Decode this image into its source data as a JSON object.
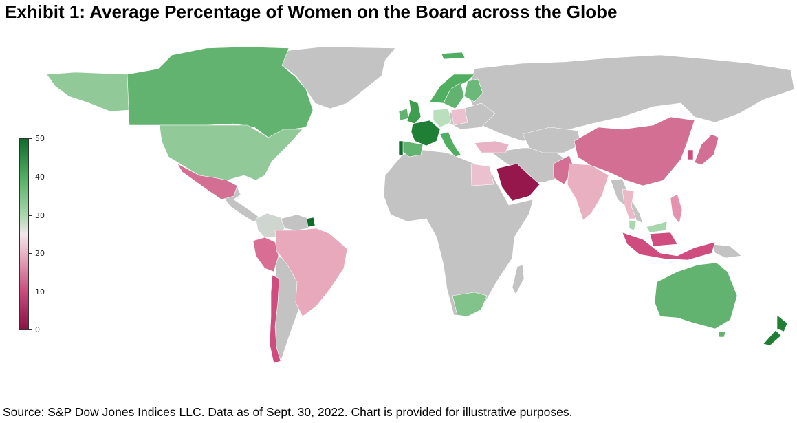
{
  "title": "Exhibit 1: Average Percentage of Women on the Board across the Globe",
  "source": "S&P Dow Jones Indices LLC. Data as of Sept. 30, 2022. Chart is provided for illustrative purposes.",
  "source_prefix": "Source:",
  "colors": {
    "no_data": "#c3c3c3",
    "scale_low": "#8e1045",
    "scale_mid": "#f3e6ea",
    "scale_high": "#0f6b2b"
  },
  "colorbar": {
    "min": 0,
    "max": 50,
    "ticks": [
      "50",
      "40",
      "30",
      "20",
      "10",
      "0"
    ]
  },
  "chart_data": {
    "type": "heatmap",
    "map_type": "choropleth",
    "value_unit": "percent",
    "range": [
      0,
      50
    ],
    "regions": [
      {
        "name": "Canada",
        "value": 39
      },
      {
        "name": "Alaska",
        "value": 33
      },
      {
        "name": "United States",
        "value": 32
      },
      {
        "name": "Mexico",
        "value": 14
      },
      {
        "name": "Colombia",
        "value": 28
      },
      {
        "name": "French Guiana",
        "value": 48
      },
      {
        "name": "Peru",
        "value": 14
      },
      {
        "name": "Brazil",
        "value": 19
      },
      {
        "name": "Chile",
        "value": 12
      },
      {
        "name": "United Kingdom",
        "value": 41
      },
      {
        "name": "Ireland",
        "value": 39
      },
      {
        "name": "France",
        "value": 46
      },
      {
        "name": "Portugal",
        "value": 49
      },
      {
        "name": "Spain",
        "value": 38
      },
      {
        "name": "Italy",
        "value": 40
      },
      {
        "name": "Germany",
        "value": 33
      },
      {
        "name": "Poland",
        "value": 21
      },
      {
        "name": "Norway",
        "value": 42
      },
      {
        "name": "Sweden",
        "value": 39
      },
      {
        "name": "Finland",
        "value": 38
      },
      {
        "name": "Svalbard",
        "value": 40
      },
      {
        "name": "Turkey",
        "value": 19
      },
      {
        "name": "Egypt",
        "value": 22
      },
      {
        "name": "Saudi Arabia",
        "value": 4
      },
      {
        "name": "South Africa",
        "value": 33
      },
      {
        "name": "India",
        "value": 18
      },
      {
        "name": "Pakistan",
        "value": 13
      },
      {
        "name": "China",
        "value": 13
      },
      {
        "name": "Japan",
        "value": 13
      },
      {
        "name": "South Korea",
        "value": 11
      },
      {
        "name": "Thailand",
        "value": 20
      },
      {
        "name": "Malaysia",
        "value": 32
      },
      {
        "name": "Philippines",
        "value": 17
      },
      {
        "name": "Indonesia",
        "value": 8
      },
      {
        "name": "Australia",
        "value": 38
      },
      {
        "name": "New Zealand",
        "value": 46
      }
    ]
  }
}
